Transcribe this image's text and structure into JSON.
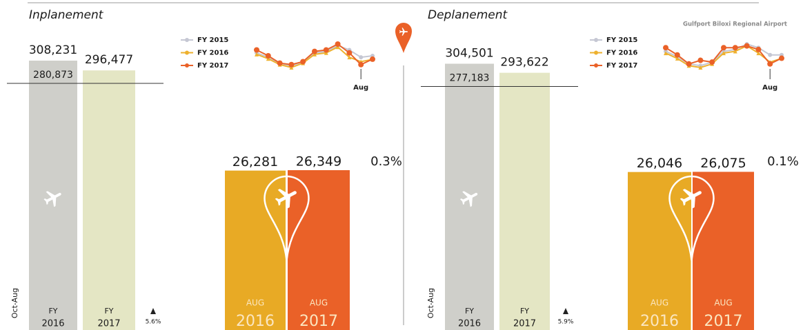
{
  "airport": "Gulfport Biloxi Regional Airport",
  "panels": [
    {
      "title": "Inplanement",
      "ytd": {
        "period": "Oct-Aug",
        "bars": [
          {
            "prefix": "FY",
            "year": "2016",
            "value": 308231,
            "value_label": "308,231",
            "color": "#cfcfca"
          },
          {
            "prefix": "FY",
            "year": "2017",
            "value": 296477,
            "value_label": "296,477",
            "color": "#e4e6c4"
          }
        ],
        "reference": {
          "value": 280873,
          "value_label": "280,873"
        },
        "change": "5.6%"
      },
      "trend": {
        "series": [
          {
            "name": "FY 2015",
            "color": "#c5c7d3",
            "values": [
              28500,
              27000,
              25000,
              24000,
              25500,
              28500,
              29000,
              31000,
              29500,
              27000,
              27500
            ]
          },
          {
            "name": "FY 2016",
            "color": "#eeb12e",
            "values": [
              28000,
              26500,
              24500,
              23500,
              25000,
              28000,
              28500,
              30500,
              27000,
              25500,
              26281
            ]
          },
          {
            "name": "FY 2017",
            "color": "#ea6128",
            "values": [
              29500,
              27500,
              25000,
              24500,
              25500,
              29000,
              29500,
              31500,
              28500,
              24500,
              26349
            ]
          }
        ],
        "end_label": "Aug"
      },
      "aug": {
        "bars": [
          {
            "month": "AUG",
            "year": "2016",
            "value": 26281,
            "value_label": "26,281",
            "color": "#e8aa25"
          },
          {
            "month": "AUG",
            "year": "2017",
            "value": 26349,
            "value_label": "26,349",
            "color": "#ea6128"
          }
        ],
        "change": "0.3%"
      }
    },
    {
      "title": "Deplanement",
      "ytd": {
        "period": "Oct-Aug",
        "bars": [
          {
            "prefix": "FY",
            "year": "2016",
            "value": 304501,
            "value_label": "304,501",
            "color": "#cfcfca"
          },
          {
            "prefix": "FY",
            "year": "2017",
            "value": 293622,
            "value_label": "293,622",
            "color": "#e4e6c4"
          }
        ],
        "reference": {
          "value": 277183,
          "value_label": "277,183"
        },
        "change": "5.9%"
      },
      "trend": {
        "series": [
          {
            "name": "FY 2015",
            "color": "#c5c7d3",
            "values": [
              28000,
              26500,
              24500,
              24000,
              25000,
              28000,
              28500,
              30000,
              29000,
              27000,
              27000
            ]
          },
          {
            "name": "FY 2016",
            "color": "#eeb12e",
            "values": [
              27500,
              26000,
              24000,
              23500,
              24500,
              27500,
              28000,
              29500,
              27500,
              25000,
              26046
            ]
          },
          {
            "name": "FY 2017",
            "color": "#ea6128",
            "values": [
              29000,
              27000,
              24500,
              25500,
              25000,
              29000,
              29000,
              29500,
              28500,
              24500,
              26075
            ]
          }
        ],
        "end_label": "Aug"
      },
      "aug": {
        "bars": [
          {
            "month": "AUG",
            "year": "2016",
            "value": 26046,
            "value_label": "26,046",
            "color": "#e8aa25"
          },
          {
            "month": "AUG",
            "year": "2017",
            "value": 26075,
            "value_label": "26,075",
            "color": "#ea6128"
          }
        ],
        "change": "0.1%"
      }
    }
  ]
}
